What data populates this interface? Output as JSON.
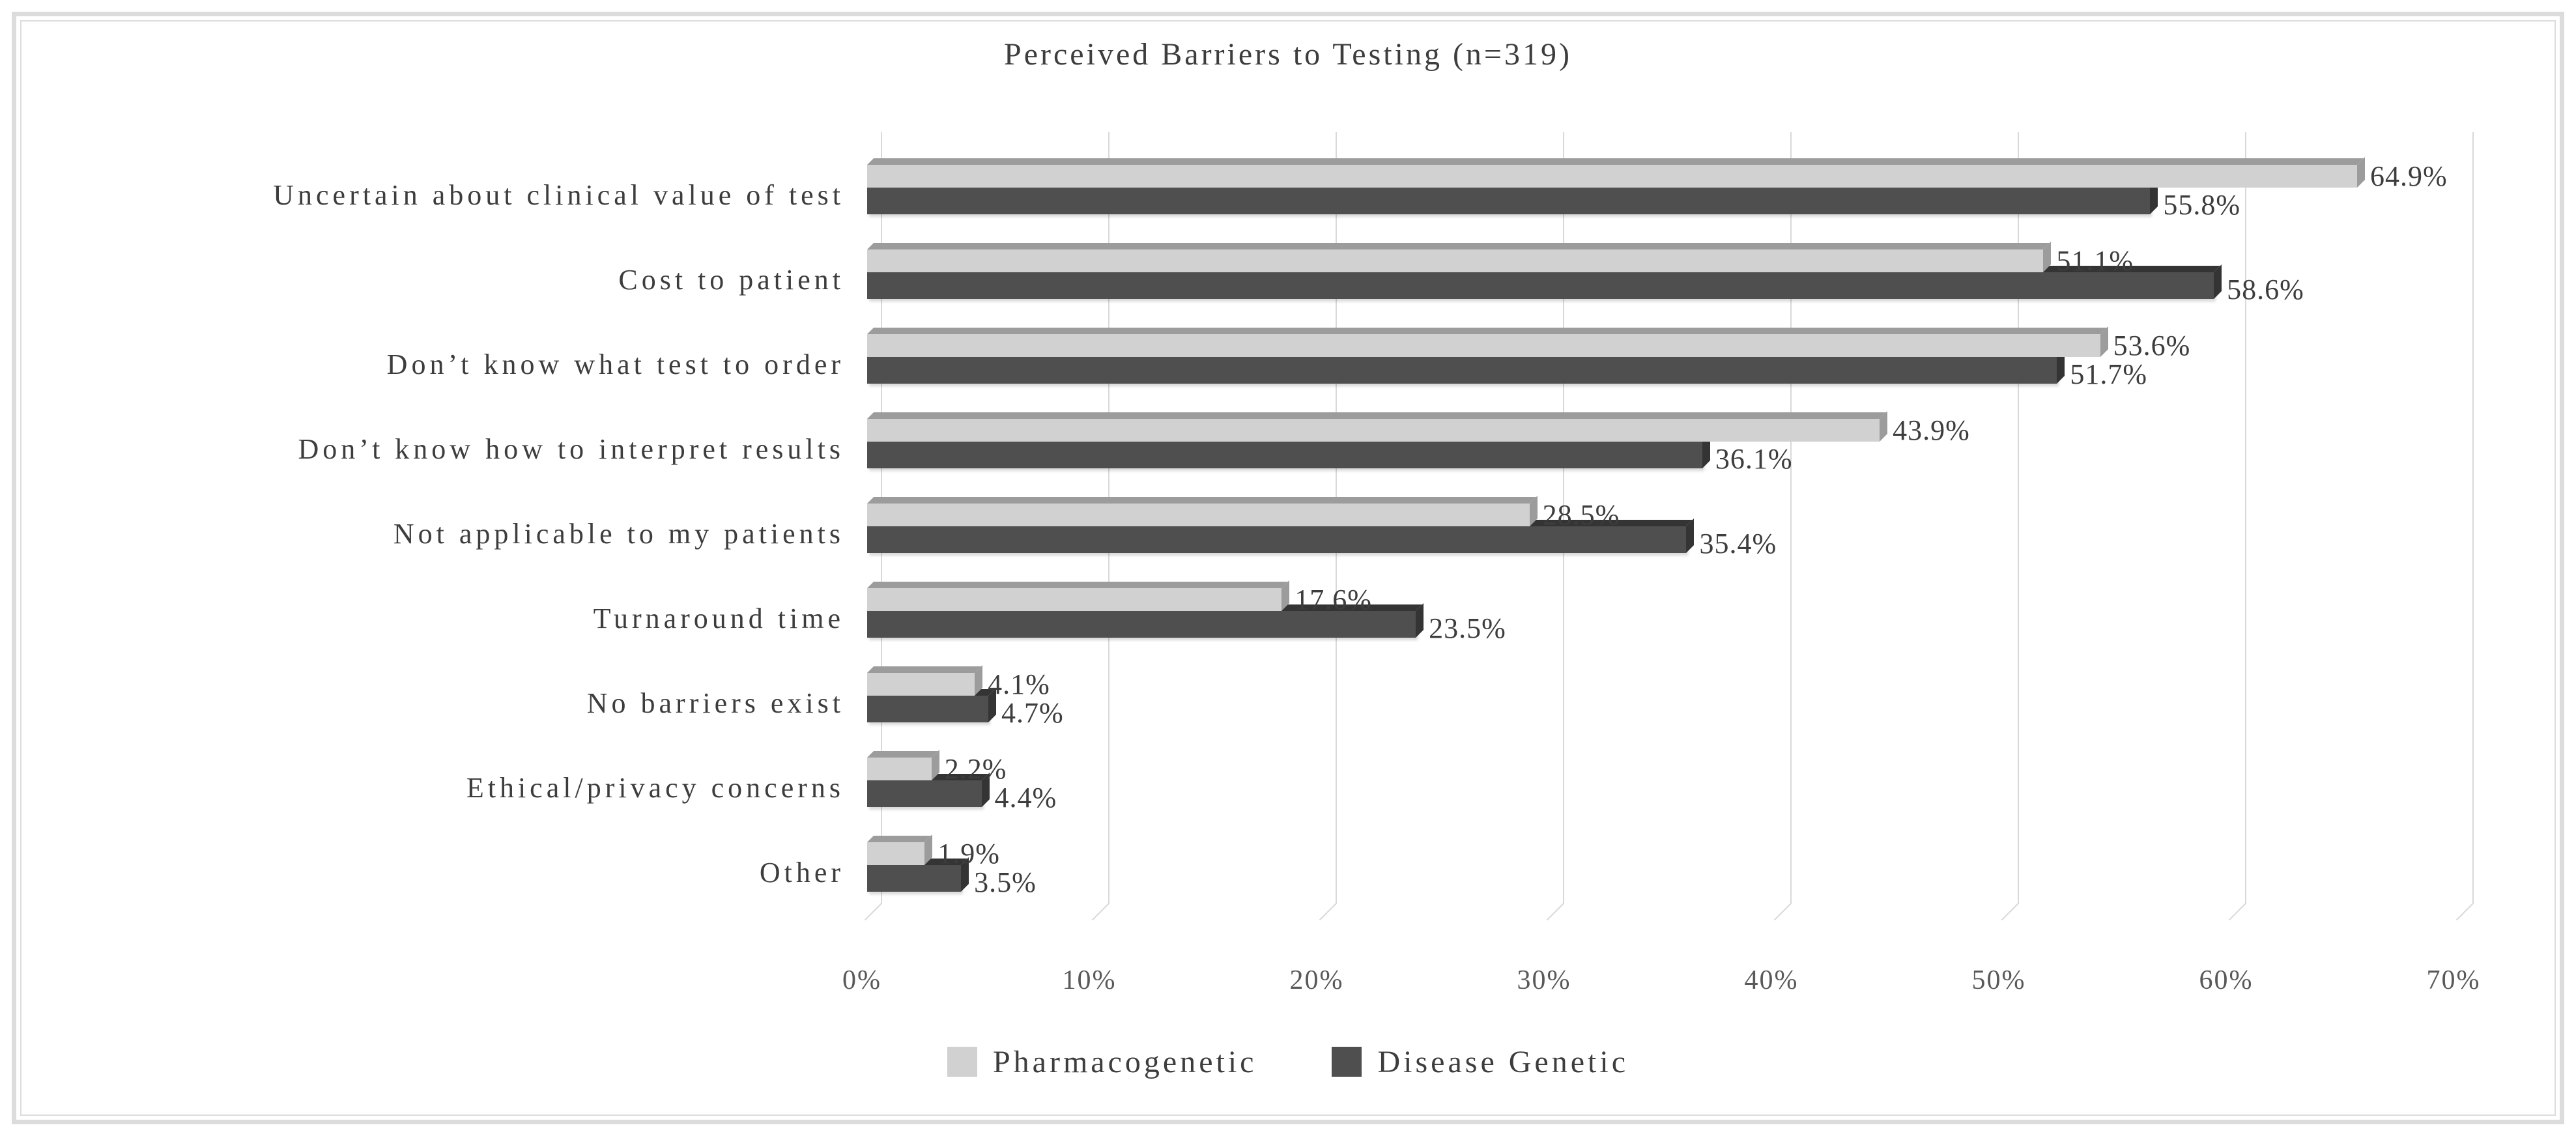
{
  "chart_data": {
    "type": "bar",
    "orientation": "horizontal",
    "effect": "3d",
    "title": "Perceived Barriers to Testing (n=319)",
    "categories": [
      "Uncertain about clinical value of test",
      "Cost to patient",
      "Don’t know what test to order",
      "Don’t know how to interpret results",
      "Not applicable to my patients",
      "Turnaround time",
      "No barriers exist",
      "Ethical/privacy concerns",
      "Other"
    ],
    "series": [
      {
        "name": "Pharmacogenetic",
        "values": [
          64.9,
          51.1,
          53.6,
          43.9,
          28.5,
          17.6,
          4.1,
          2.2,
          1.9
        ],
        "labels": [
          "64.9%",
          "51.1%",
          "53.6%",
          "43.9%",
          "28.5%",
          "17.6%",
          "4.1%",
          "2.2%",
          "1.9%"
        ],
        "color": "#d1d1d1",
        "bevel_color": "#9c9c9c"
      },
      {
        "name": "Disease Genetic",
        "values": [
          55.8,
          58.6,
          51.7,
          36.1,
          35.4,
          23.5,
          4.7,
          4.4,
          3.5
        ],
        "labels": [
          "55.8%",
          "58.6%",
          "51.7%",
          "36.1%",
          "35.4%",
          "23.5%",
          "4.7%",
          "4.4%",
          "3.5%"
        ],
        "color": "#4f4f4f",
        "bevel_color": "#343434"
      }
    ],
    "x_ticks": [
      "0%",
      "10%",
      "20%",
      "30%",
      "40%",
      "50%",
      "60%",
      "70%"
    ],
    "xlim": [
      0,
      70
    ],
    "grid": true,
    "legend_position": "bottom"
  },
  "colors": {
    "gridline": "#d9d9d9",
    "frame": "#dcdcdc",
    "text": "#3d3d3d",
    "tick_text": "#595959",
    "background": "#ffffff"
  }
}
